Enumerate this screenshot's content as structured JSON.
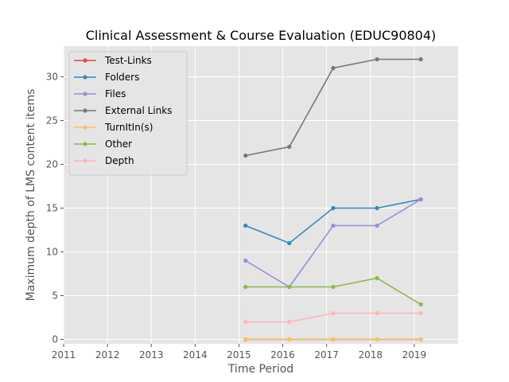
{
  "chart_data": {
    "type": "line",
    "title": "Clinical Assessment & Course Evaluation (EDUC90804)",
    "xlabel": "Time Period",
    "ylabel": "Maximum depth of LMS content items",
    "xlim": [
      2011,
      2020
    ],
    "ylim": [
      -0.5,
      33.5
    ],
    "xticks": [
      "2011",
      "2012",
      "2013",
      "2014",
      "2015",
      "2016",
      "2017",
      "2018",
      "2019"
    ],
    "yticks": [
      "0",
      "5",
      "10",
      "15",
      "20",
      "25",
      "30"
    ],
    "grid": true,
    "legend_position": "top-left",
    "x": [
      2015.15,
      2016.15,
      2017.15,
      2018.15,
      2019.15
    ],
    "series": [
      {
        "name": "Test-Links",
        "color": "#e24a33",
        "values": [
          0,
          0,
          0,
          0,
          0
        ]
      },
      {
        "name": "Folders",
        "color": "#348abd",
        "values": [
          13,
          11,
          15,
          15,
          16
        ]
      },
      {
        "name": "Files",
        "color": "#988ed5",
        "values": [
          9,
          6,
          13,
          13,
          16
        ]
      },
      {
        "name": "External Links",
        "color": "#777777",
        "values": [
          21,
          22,
          31,
          32,
          32
        ]
      },
      {
        "name": "TurnItIn(s)",
        "color": "#fbc15e",
        "values": [
          0,
          0,
          0,
          0,
          0
        ]
      },
      {
        "name": "Other",
        "color": "#8eba42",
        "values": [
          6,
          6,
          6,
          7,
          4
        ]
      },
      {
        "name": "Depth",
        "color": "#ffb5b8",
        "values": [
          2,
          2,
          3,
          3,
          3
        ]
      }
    ]
  }
}
